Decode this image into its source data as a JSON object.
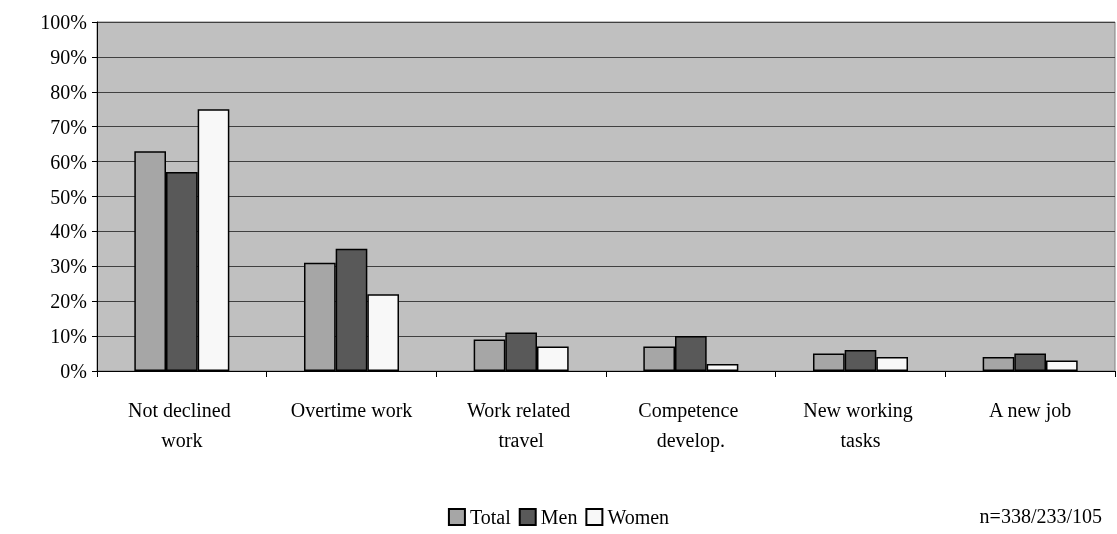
{
  "chart_data": {
    "type": "bar",
    "categories": [
      "Not declined work",
      "Overtime work",
      "Work related travel",
      "Competence develop.",
      "New working tasks",
      "A new job"
    ],
    "series": [
      {
        "name": "Total",
        "color": "#a6a6a6",
        "values": [
          63,
          31,
          9,
          7,
          5,
          4
        ]
      },
      {
        "name": "Men",
        "color": "#595959",
        "values": [
          57,
          35,
          11,
          10,
          6,
          5
        ]
      },
      {
        "name": "Women",
        "color": "#f8f8f8",
        "values": [
          75,
          22,
          7,
          2,
          4,
          3
        ]
      }
    ],
    "ylim": [
      0,
      100
    ],
    "yticks": [
      {
        "value": 0,
        "label": "0%"
      },
      {
        "value": 10,
        "label": "10%"
      },
      {
        "value": 20,
        "label": "20%"
      },
      {
        "value": 30,
        "label": "30%"
      },
      {
        "value": 40,
        "label": "40%"
      },
      {
        "value": 50,
        "label": "50%"
      },
      {
        "value": 60,
        "label": "60%"
      },
      {
        "value": 70,
        "label": "70%"
      },
      {
        "value": 80,
        "label": "80%"
      },
      {
        "value": 90,
        "label": "90%"
      },
      {
        "value": 100,
        "label": "100%"
      }
    ],
    "grid": "y",
    "legend": "bottom",
    "annotations": [
      "n=338/233/105"
    ]
  }
}
